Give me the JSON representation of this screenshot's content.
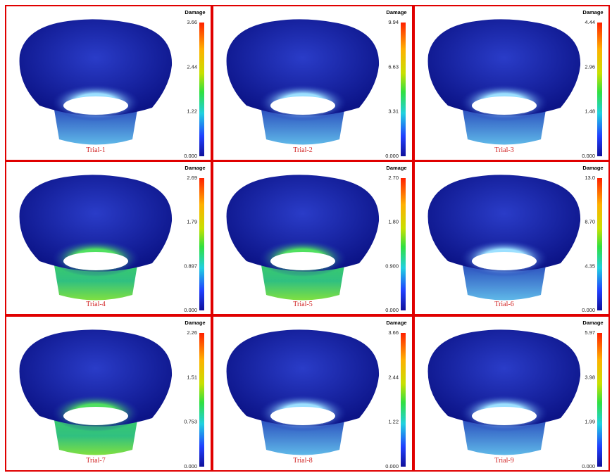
{
  "panels": [
    {
      "label": "Trial-1",
      "colorbar_title": "Damage",
      "ticks": [
        "3.66",
        "2.44",
        "1.22",
        "0.000"
      ]
    },
    {
      "label": "Trial-2",
      "colorbar_title": "Damage",
      "ticks": [
        "9.94",
        "6.63",
        "3.31",
        "0.000"
      ]
    },
    {
      "label": "Trial-3",
      "colorbar_title": "Damage",
      "ticks": [
        "4.44",
        "2.96",
        "1.48",
        "0.000"
      ]
    },
    {
      "label": "Trial-4",
      "colorbar_title": "Damage",
      "ticks": [
        "2.69",
        "1.79",
        "0.897",
        "0.000"
      ]
    },
    {
      "label": "Trial-5",
      "colorbar_title": "Damage",
      "ticks": [
        "2.70",
        "1.80",
        "0.900",
        "0.000"
      ]
    },
    {
      "label": "Trial-6",
      "colorbar_title": "Damage",
      "ticks": [
        "13.0",
        "8.70",
        "4.35",
        "0.000"
      ]
    },
    {
      "label": "Trial-7",
      "colorbar_title": "Damage",
      "ticks": [
        "2.26",
        "1.51",
        "0.753",
        "0.000"
      ]
    },
    {
      "label": "Trial-8",
      "colorbar_title": "Damage",
      "ticks": [
        "3.66",
        "2.44",
        "1.22",
        "0.000"
      ]
    },
    {
      "label": "Trial-9",
      "colorbar_title": "Damage",
      "ticks": [
        "5.97",
        "3.98",
        "1.99",
        "0.000"
      ]
    }
  ]
}
